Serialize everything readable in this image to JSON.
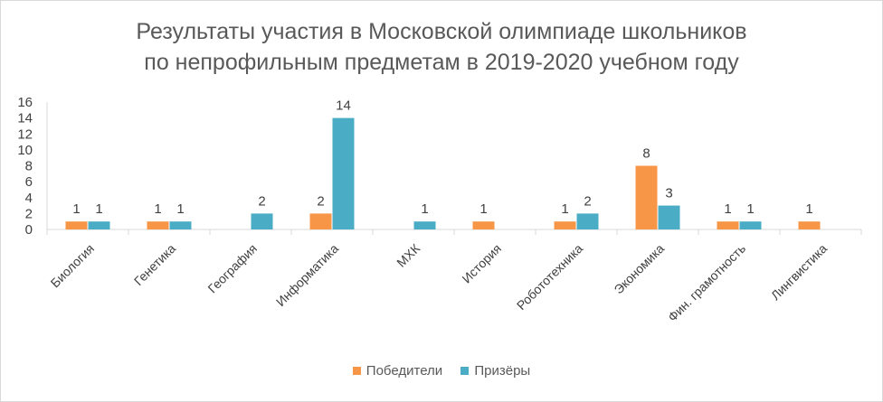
{
  "chart_data": {
    "type": "bar",
    "title_line1": "Результаты участия в Московской олимпиаде школьников",
    "title_line2": "по непрофильным предметам в 2019-2020 учебном году",
    "categories": [
      "Биология",
      "Генетика",
      "География",
      "Информатика",
      "МХК",
      "История",
      "Робототехника",
      "Экономика",
      "Фин. грамотность",
      "Лингвистика"
    ],
    "series": [
      {
        "name": "Победители",
        "color": "#F79646",
        "values": [
          1,
          1,
          0,
          2,
          0,
          1,
          1,
          8,
          1,
          1
        ]
      },
      {
        "name": "Призёры",
        "color": "#4BACC6",
        "values": [
          1,
          1,
          2,
          14,
          1,
          0,
          2,
          3,
          1,
          0
        ]
      }
    ],
    "ylim": [
      0,
      16
    ],
    "yticks": [
      "0",
      "2",
      "4",
      "6",
      "8",
      "10",
      "12",
      "14",
      "16"
    ],
    "grid": false,
    "legend_position": "bottom"
  }
}
